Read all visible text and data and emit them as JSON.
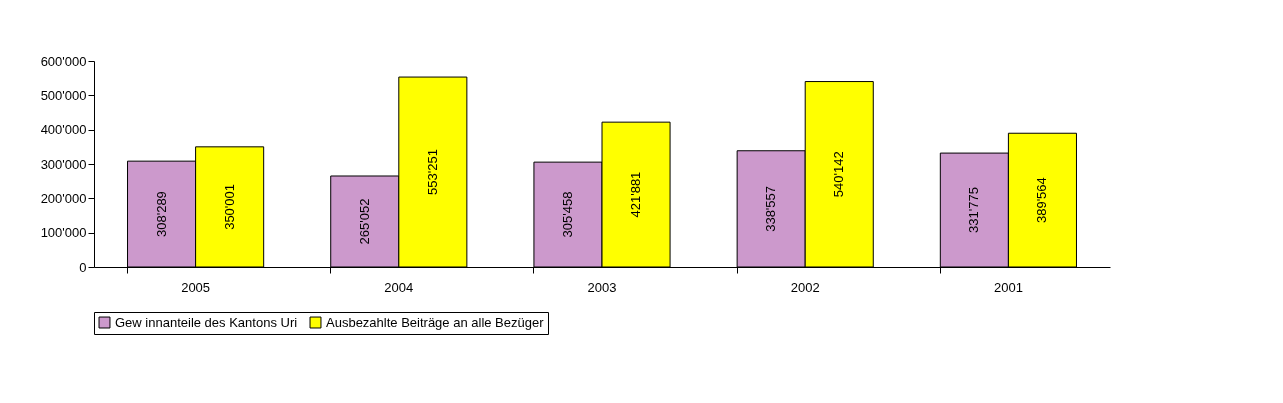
{
  "chart_data": {
    "type": "bar",
    "categories": [
      "2005",
      "2004",
      "2003",
      "2002",
      "2001"
    ],
    "series": [
      {
        "name": "Gew innanteile des Kantons Uri",
        "color": "#cc99cc",
        "values": [
          308289,
          265052,
          305458,
          338557,
          331775
        ],
        "value_labels": [
          "308'289",
          "265'052",
          "305'458",
          "338'557",
          "331'775"
        ]
      },
      {
        "name": "Ausbezahlte Beiträge an alle Bezüger",
        "color": "#ffff00",
        "values": [
          350001,
          553251,
          421881,
          540142,
          389564
        ],
        "value_labels": [
          "350'001",
          "553'251",
          "421'881",
          "540'142",
          "389'564"
        ]
      }
    ],
    "ylim": [
      0,
      600000
    ],
    "yticks": [
      {
        "value": 0,
        "label": "0"
      },
      {
        "value": 100000,
        "label": "100'000"
      },
      {
        "value": 200000,
        "label": "200'000"
      },
      {
        "value": 300000,
        "label": "300'000"
      },
      {
        "value": 400000,
        "label": "400'000"
      },
      {
        "value": 500000,
        "label": "500'000"
      },
      {
        "value": 600000,
        "label": "600'000"
      }
    ],
    "grid": false,
    "legend": "bottom"
  }
}
